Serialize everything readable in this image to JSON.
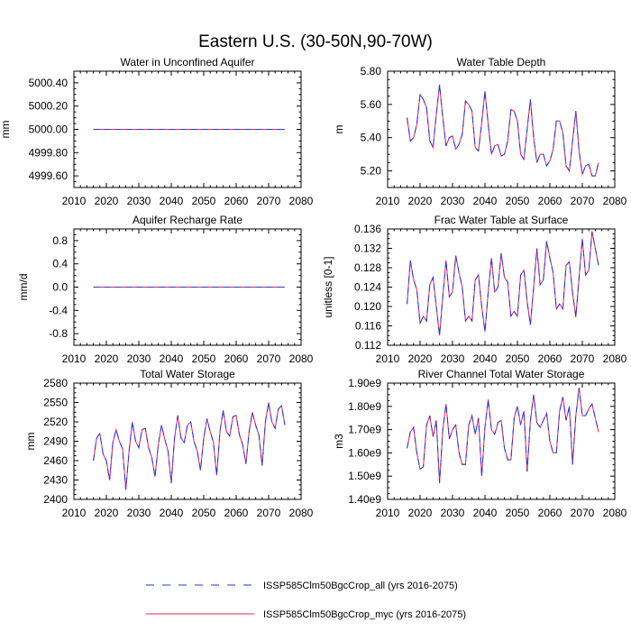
{
  "figure": {
    "title": "Eastern U.S. (30-50N,90-70W)"
  },
  "legend": {
    "placement": "bottom-center",
    "entries": [
      {
        "label": "ISSP585Clm50BgcCrop_all (yrs 2016-2075)",
        "style": "dashed",
        "color": "#1e3ad8"
      },
      {
        "label": "ISSP585Clm50BgcCrop_myc (yrs 2016-2075)",
        "style": "solid",
        "color": "#e8254f"
      }
    ]
  },
  "chart_data": [
    {
      "type": "line",
      "title": "Water in Unconfined Aquifer",
      "xlabel": "",
      "ylabel": "mm",
      "xlim": [
        2010,
        2080
      ],
      "ylim": [
        4999.5,
        5000.5
      ],
      "xticks": [
        2010,
        2020,
        2030,
        2040,
        2050,
        2060,
        2070,
        2080
      ],
      "xtick_labels": [
        "2010",
        "2020",
        "2030",
        "2040",
        "2050",
        "2060",
        "2070",
        "2080"
      ],
      "yticks": [
        4999.6,
        4999.8,
        5000.0,
        5000.2,
        5000.4
      ],
      "ytick_labels": [
        "4999.60",
        "4999.80",
        "5000.00",
        "5000.20",
        "5000.40"
      ],
      "x_start": 2016,
      "series": [
        {
          "values": [
            5000,
            5000,
            5000,
            5000,
            5000,
            5000,
            5000,
            5000,
            5000,
            5000,
            5000,
            5000,
            5000,
            5000,
            5000,
            5000,
            5000,
            5000,
            5000,
            5000,
            5000,
            5000,
            5000,
            5000,
            5000,
            5000,
            5000,
            5000,
            5000,
            5000,
            5000,
            5000,
            5000,
            5000,
            5000,
            5000,
            5000,
            5000,
            5000,
            5000,
            5000,
            5000,
            5000,
            5000,
            5000,
            5000,
            5000,
            5000,
            5000,
            5000,
            5000,
            5000,
            5000,
            5000,
            5000,
            5000,
            5000,
            5000,
            5000,
            5000
          ]
        }
      ]
    },
    {
      "type": "line",
      "title": "Water Table Depth",
      "xlabel": "",
      "ylabel": "m",
      "xlim": [
        2010,
        2080
      ],
      "ylim": [
        5.1,
        5.8
      ],
      "xticks": [
        2010,
        2020,
        2030,
        2040,
        2050,
        2060,
        2070,
        2080
      ],
      "xtick_labels": [
        "2010",
        "2020",
        "2030",
        "2040",
        "2050",
        "2060",
        "2070",
        "2080"
      ],
      "yticks": [
        5.2,
        5.4,
        5.6,
        5.8
      ],
      "ytick_labels": [
        "5.20",
        "5.40",
        "5.60",
        "5.80"
      ],
      "x_start": 2016,
      "series": [
        {
          "values": [
            5.52,
            5.38,
            5.4,
            5.48,
            5.66,
            5.63,
            5.58,
            5.38,
            5.34,
            5.54,
            5.72,
            5.52,
            5.35,
            5.4,
            5.41,
            5.33,
            5.36,
            5.42,
            5.62,
            5.6,
            5.56,
            5.34,
            5.32,
            5.49,
            5.68,
            5.48,
            5.3,
            5.35,
            5.36,
            5.29,
            5.3,
            5.38,
            5.57,
            5.56,
            5.5,
            5.3,
            5.27,
            5.45,
            5.63,
            5.4,
            5.25,
            5.3,
            5.3,
            5.23,
            5.26,
            5.33,
            5.5,
            5.5,
            5.43,
            5.23,
            5.2,
            5.38,
            5.56,
            5.32,
            5.18,
            5.23,
            5.24,
            5.17,
            5.17,
            5.25
          ]
        }
      ]
    },
    {
      "type": "line",
      "title": "Aquifer Recharge Rate",
      "xlabel": "",
      "ylabel": "mm/d",
      "xlim": [
        2010,
        2080
      ],
      "ylim": [
        -1.0,
        1.0
      ],
      "xticks": [
        2010,
        2020,
        2030,
        2040,
        2050,
        2060,
        2070,
        2080
      ],
      "xtick_labels": [
        "2010",
        "2020",
        "2030",
        "2040",
        "2050",
        "2060",
        "2070",
        "2080"
      ],
      "yticks": [
        -0.8,
        -0.4,
        0.0,
        0.4,
        0.8
      ],
      "ytick_labels": [
        "-0.8",
        "-0.4",
        "0.0",
        "0.4",
        "0.8"
      ],
      "x_start": 2016,
      "series": [
        {
          "values": [
            0,
            0,
            0,
            0,
            0,
            0,
            0,
            0,
            0,
            0,
            0,
            0,
            0,
            0,
            0,
            0,
            0,
            0,
            0,
            0,
            0,
            0,
            0,
            0,
            0,
            0,
            0,
            0,
            0,
            0,
            0,
            0,
            0,
            0,
            0,
            0,
            0,
            0,
            0,
            0,
            0,
            0,
            0,
            0,
            0,
            0,
            0,
            0,
            0,
            0,
            0,
            0,
            0,
            0,
            0,
            0,
            0,
            0,
            0,
            0
          ]
        }
      ]
    },
    {
      "type": "line",
      "title": "Frac Water Table at Surface",
      "xlabel": "",
      "ylabel": "unitless [0-1]",
      "xlim": [
        2010,
        2080
      ],
      "ylim": [
        0.112,
        0.136
      ],
      "xticks": [
        2010,
        2020,
        2030,
        2040,
        2050,
        2060,
        2070,
        2080
      ],
      "xtick_labels": [
        "2010",
        "2020",
        "2030",
        "2040",
        "2050",
        "2060",
        "2070",
        "2080"
      ],
      "yticks": [
        0.112,
        0.116,
        0.12,
        0.124,
        0.128,
        0.132,
        0.136
      ],
      "ytick_labels": [
        "0.112",
        "0.116",
        "0.120",
        "0.124",
        "0.128",
        "0.132",
        "0.136"
      ],
      "x_start": 2016,
      "series": [
        {
          "values": [
            0.1205,
            0.1295,
            0.1255,
            0.1235,
            0.1165,
            0.118,
            0.117,
            0.1245,
            0.126,
            0.12,
            0.114,
            0.122,
            0.1295,
            0.122,
            0.123,
            0.1305,
            0.127,
            0.124,
            0.117,
            0.118,
            0.117,
            0.1255,
            0.1265,
            0.12,
            0.1148,
            0.123,
            0.13,
            0.123,
            0.124,
            0.131,
            0.126,
            0.125,
            0.118,
            0.119,
            0.118,
            0.1265,
            0.1275,
            0.121,
            0.1162,
            0.124,
            0.132,
            0.1245,
            0.1255,
            0.1335,
            0.13,
            0.127,
            0.1195,
            0.1205,
            0.1195,
            0.1285,
            0.1292,
            0.1228,
            0.1178,
            0.126,
            0.134,
            0.1265,
            0.1275,
            0.1355,
            0.132,
            0.1285
          ]
        }
      ]
    },
    {
      "type": "line",
      "title": "Total Water Storage",
      "xlabel": "",
      "ylabel": "mm",
      "xlim": [
        2010,
        2080
      ],
      "ylim": [
        2400,
        2580
      ],
      "xticks": [
        2010,
        2020,
        2030,
        2040,
        2050,
        2060,
        2070,
        2080
      ],
      "xtick_labels": [
        "2010",
        "2020",
        "2030",
        "2040",
        "2050",
        "2060",
        "2070",
        "2080"
      ],
      "yticks": [
        2400,
        2430,
        2460,
        2490,
        2520,
        2550,
        2580
      ],
      "ytick_labels": [
        "2400",
        "2430",
        "2460",
        "2490",
        "2520",
        "2550",
        "2580"
      ],
      "x_start": 2016,
      "series": [
        {
          "values": [
            2460,
            2495,
            2502,
            2470,
            2460,
            2430,
            2488,
            2508,
            2490,
            2478,
            2415,
            2475,
            2520,
            2490,
            2480,
            2508,
            2510,
            2480,
            2465,
            2435,
            2485,
            2515,
            2493,
            2475,
            2425,
            2495,
            2530,
            2495,
            2488,
            2515,
            2520,
            2490,
            2475,
            2445,
            2495,
            2525,
            2505,
            2488,
            2437,
            2505,
            2538,
            2505,
            2498,
            2528,
            2530,
            2500,
            2485,
            2455,
            2505,
            2535,
            2515,
            2500,
            2452,
            2520,
            2550,
            2520,
            2510,
            2540,
            2545,
            2515
          ]
        }
      ]
    },
    {
      "type": "line",
      "title": "River Channel Total Water Storage",
      "xlabel": "",
      "ylabel": "m3",
      "xlim": [
        2010,
        2080
      ],
      "ylim": [
        1400000000.0,
        1900000000.0
      ],
      "xticks": [
        2010,
        2020,
        2030,
        2040,
        2050,
        2060,
        2070,
        2080
      ],
      "xtick_labels": [
        "2010",
        "2020",
        "2030",
        "2040",
        "2050",
        "2060",
        "2070",
        "2080"
      ],
      "yticks": [
        1400000000.0,
        1500000000.0,
        1600000000.0,
        1700000000.0,
        1800000000.0,
        1900000000.0
      ],
      "ytick_labels": [
        "1.40e9",
        "1.50e9",
        "1.60e9",
        "1.70e9",
        "1.80e9",
        "1.90e9"
      ],
      "x_start": 2016,
      "series": [
        {
          "values": [
            1620000000.0,
            1690000000.0,
            1710000000.0,
            1600000000.0,
            1530000000.0,
            1540000000.0,
            1720000000.0,
            1760000000.0,
            1670000000.0,
            1740000000.0,
            1470000000.0,
            1700000000.0,
            1810000000.0,
            1660000000.0,
            1700000000.0,
            1720000000.0,
            1600000000.0,
            1550000000.0,
            1550000000.0,
            1720000000.0,
            1760000000.0,
            1680000000.0,
            1750000000.0,
            1500000000.0,
            1710000000.0,
            1830000000.0,
            1700000000.0,
            1680000000.0,
            1730000000.0,
            1740000000.0,
            1620000000.0,
            1570000000.0,
            1570000000.0,
            1750000000.0,
            1800000000.0,
            1720000000.0,
            1780000000.0,
            1520000000.0,
            1740000000.0,
            1850000000.0,
            1730000000.0,
            1710000000.0,
            1740000000.0,
            1770000000.0,
            1650000000.0,
            1600000000.0,
            1600000000.0,
            1780000000.0,
            1840000000.0,
            1740000000.0,
            1800000000.0,
            1550000000.0,
            1760000000.0,
            1880000000.0,
            1760000000.0,
            1760000000.0,
            1790000000.0,
            1810000000.0,
            1750000000.0,
            1690000000.0
          ]
        }
      ]
    }
  ]
}
